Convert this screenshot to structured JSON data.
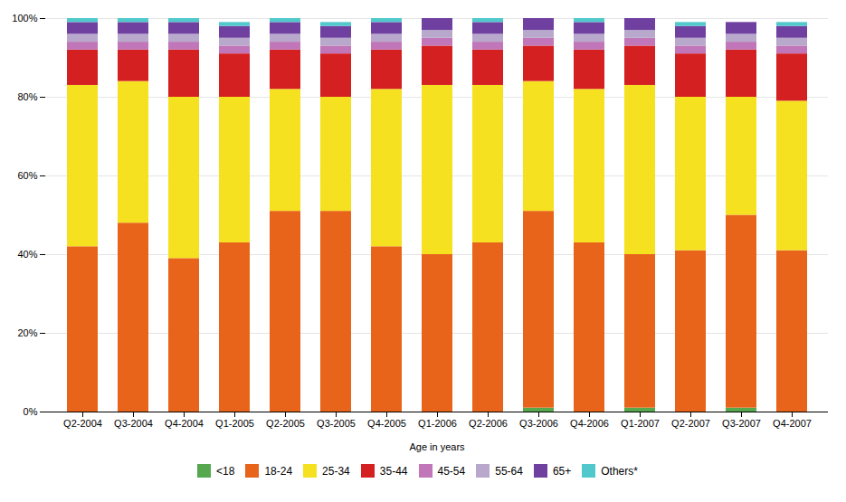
{
  "chart_data": {
    "type": "bar",
    "stacked": true,
    "categories": [
      "Q2-2004",
      "Q3-2004",
      "Q4-2004",
      "Q1-2005",
      "Q2-2005",
      "Q3-2005",
      "Q4-2005",
      "Q1-2006",
      "Q2-2006",
      "Q3-2006",
      "Q4-2006",
      "Q1-2007",
      "Q2-2007",
      "Q3-2007",
      "Q4-2007"
    ],
    "series": [
      {
        "name": "<18",
        "color": "#55a84e",
        "values": [
          0,
          0,
          0,
          0,
          0,
          0,
          0,
          0,
          0,
          1,
          0,
          1,
          0,
          1,
          0
        ]
      },
      {
        "name": "18-24",
        "color": "#e8641a",
        "values": [
          42,
          48,
          39,
          43,
          51,
          51,
          42,
          40,
          43,
          50,
          43,
          39,
          41,
          49,
          41
        ]
      },
      {
        "name": "25-34",
        "color": "#f5e120",
        "values": [
          41,
          36,
          41,
          37,
          31,
          29,
          40,
          43,
          40,
          33,
          39,
          43,
          39,
          30,
          38
        ]
      },
      {
        "name": "35-44",
        "color": "#d42020",
        "values": [
          9,
          8,
          12,
          11,
          10,
          11,
          10,
          10,
          9,
          9,
          10,
          10,
          11,
          12,
          12
        ]
      },
      {
        "name": "45-54",
        "color": "#c076b8",
        "values": [
          2,
          2,
          2,
          2,
          2,
          2,
          2,
          2,
          2,
          2,
          2,
          2,
          2,
          2,
          2
        ]
      },
      {
        "name": "55-64",
        "color": "#b8a8cc",
        "values": [
          2,
          2,
          2,
          2,
          2,
          2,
          2,
          2,
          2,
          2,
          2,
          2,
          2,
          2,
          2
        ]
      },
      {
        "name": "65+",
        "color": "#7040a0",
        "values": [
          3,
          3,
          3,
          3,
          3,
          3,
          3,
          3,
          3,
          3,
          3,
          3,
          3,
          3,
          3
        ]
      },
      {
        "name": "Others*",
        "color": "#50c8cc",
        "values": [
          1,
          1,
          1,
          1,
          1,
          1,
          1,
          0,
          1,
          0,
          1,
          0,
          1,
          0,
          1
        ]
      }
    ],
    "xlabel": "Age in years",
    "ylim": [
      0,
      100
    ],
    "yticks": [
      {
        "value": 0,
        "label": "0%"
      },
      {
        "value": 20,
        "label": "20%"
      },
      {
        "value": 40,
        "label": "40%"
      },
      {
        "value": 60,
        "label": "60%"
      },
      {
        "value": 80,
        "label": "80%"
      },
      {
        "value": 100,
        "label": "100%"
      }
    ],
    "grid": true,
    "legend": "bottom"
  }
}
